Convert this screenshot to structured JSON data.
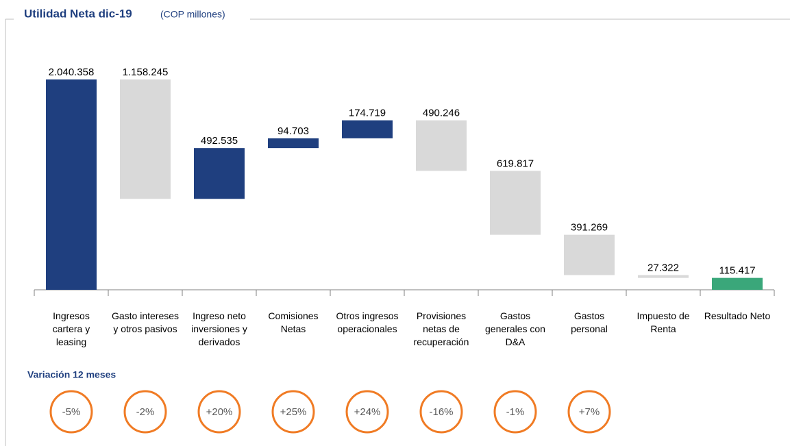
{
  "chart_data": {
    "type": "waterfall",
    "title": "Utilidad Neta dic-19",
    "subtitle": "(COP millones)",
    "categories": [
      "Ingresos cartera y leasing",
      "Gasto intereses y otros pasivos",
      "Ingreso neto inversiones y derivados",
      "Comisiones Netas",
      "Otros ingresos operacionales",
      "Provisiones netas de recuperación",
      "Gastos generales con D&A",
      "Gastos personal",
      "Impuesto de Renta",
      "Resultado Neto"
    ],
    "values": [
      2040358,
      -1158245,
      492535,
      94703,
      174719,
      -490246,
      -619817,
      -391269,
      -27322,
      115417
    ],
    "value_labels": [
      "2.040.358",
      "1.158.245",
      "492.535",
      "94.703",
      "174.719",
      "490.246",
      "619.817",
      "391.269",
      "27.322",
      "115.417"
    ],
    "measures": [
      "relative",
      "relative",
      "relative",
      "relative",
      "relative",
      "relative",
      "relative",
      "relative",
      "relative",
      "total"
    ],
    "colors": {
      "increase": "#1f3f7f",
      "decrease": "#d9d9d9",
      "total": "#3aa77a"
    },
    "ylim": [
      0,
      2100000
    ],
    "variation_title": "Variación 12 meses",
    "variation_labels": [
      "-5%",
      "-2%",
      "+20%",
      "+25%",
      "+24%",
      "-16%",
      "-1%",
      "+7%"
    ]
  }
}
